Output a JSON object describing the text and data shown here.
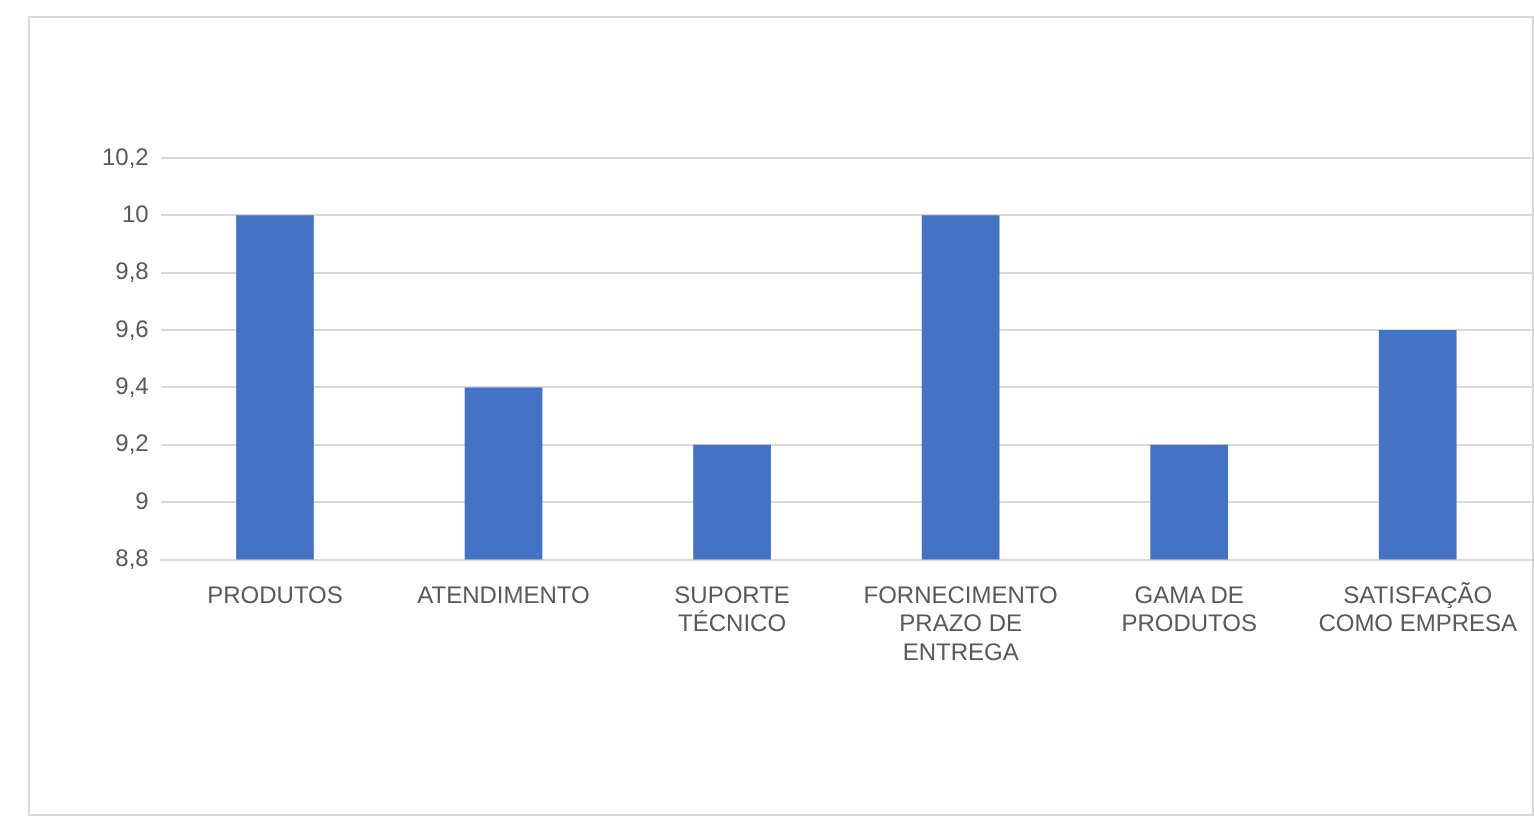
{
  "chart_data": {
    "type": "bar",
    "categories": [
      "PRODUTOS",
      "ATENDIMENTO",
      "SUPORTE TÉCNICO",
      "FORNECIMENTO PRAZO DE ENTREGA",
      "GAMA DE PRODUTOS",
      "SATISFAÇÃO COMO EMPRESA"
    ],
    "values": [
      10,
      9.4,
      9.2,
      10,
      9.2,
      9.6
    ],
    "color": "#4472c4",
    "ylim": [
      8.8,
      10.2
    ],
    "yticks": [
      {
        "value": 8.8,
        "label": "8,8"
      },
      9,
      {
        "value": 9.2,
        "label": "9,2"
      },
      {
        "value": 9.4,
        "label": "9,4"
      },
      {
        "value": 9.6,
        "label": "9,6"
      },
      {
        "value": 9.8,
        "label": "9,8"
      },
      10,
      {
        "value": 10.2,
        "label": "10,2"
      }
    ],
    "grid": "y",
    "legend": false
  }
}
